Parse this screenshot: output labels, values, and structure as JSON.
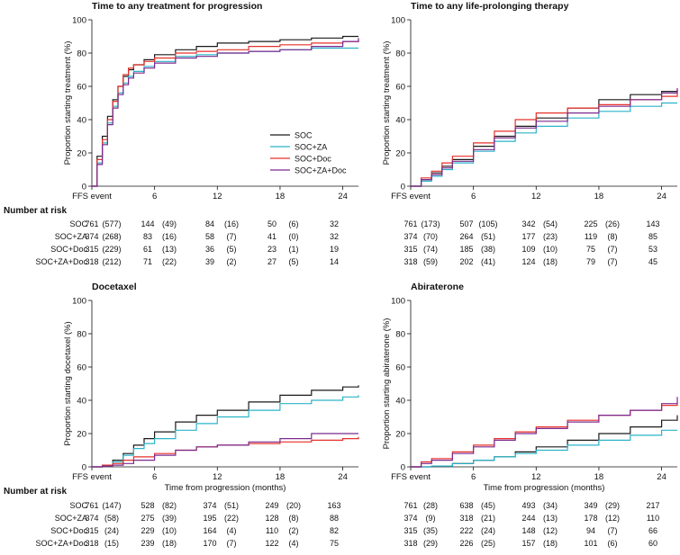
{
  "series_colors": {
    "SOC": "#1a1a1a",
    "SOC+ZA": "#2bb3c8",
    "SOC+Doc": "#e5312b",
    "SOC+ZA+Doc": "#7b2a8e"
  },
  "risk_header": "Number at risk",
  "risk_groups": [
    "SOC",
    "SOC+ZA",
    "SOC+Doc",
    "SOC+ZA+Doc"
  ],
  "chart_data": [
    {
      "type": "line",
      "title": "Time to any treatment for progression",
      "ylabel": "Proportion starting treatment (%)",
      "xlabel": "",
      "xlim": [
        0,
        25.5
      ],
      "ylim": [
        0,
        100
      ],
      "xticks": [
        "FFS event",
        "6",
        "12",
        "18",
        "24"
      ],
      "xtick_values": [
        0,
        6,
        12,
        18,
        24
      ],
      "yticks": [
        "0",
        "20",
        "40",
        "60",
        "80",
        "100"
      ],
      "legend": [
        "SOC",
        "SOC+ZA",
        "SOC+Doc",
        "SOC+ZA+Doc"
      ],
      "legend_position": "bottom-right",
      "series": [
        {
          "name": "SOC",
          "x": [
            0,
            0.5,
            1,
            1.5,
            2,
            2.5,
            3,
            3.5,
            4,
            5,
            6,
            8,
            10,
            12,
            15,
            18,
            21,
            24,
            25.5
          ],
          "y": [
            0,
            18,
            30,
            42,
            52,
            60,
            66,
            70,
            73,
            76,
            79,
            82,
            84,
            86,
            87,
            88,
            89,
            90,
            90
          ]
        },
        {
          "name": "SOC+ZA",
          "x": [
            0,
            0.5,
            1,
            1.5,
            2,
            2.5,
            3,
            3.5,
            4,
            5,
            6,
            8,
            10,
            12,
            15,
            18,
            21,
            24,
            25.5
          ],
          "y": [
            0,
            14,
            26,
            38,
            48,
            56,
            62,
            66,
            69,
            72,
            75,
            78,
            79,
            80,
            81,
            82,
            83,
            83,
            83
          ]
        },
        {
          "name": "SOC+Doc",
          "x": [
            0,
            0.5,
            1,
            1.5,
            2,
            2.5,
            3,
            3.5,
            4,
            5,
            6,
            8,
            10,
            12,
            15,
            18,
            21,
            24,
            25.5
          ],
          "y": [
            0,
            16,
            28,
            40,
            51,
            60,
            67,
            71,
            73,
            75,
            77,
            80,
            81,
            82,
            84,
            85,
            86,
            87,
            88
          ]
        },
        {
          "name": "SOC+ZA+Doc",
          "x": [
            0,
            0.5,
            1,
            1.5,
            2,
            2.5,
            3,
            3.5,
            4,
            5,
            6,
            8,
            10,
            12,
            15,
            18,
            21,
            24,
            25.5
          ],
          "y": [
            0,
            13,
            25,
            37,
            47,
            55,
            61,
            65,
            68,
            71,
            74,
            77,
            78,
            80,
            81,
            82,
            84,
            87,
            89
          ]
        }
      ],
      "at_risk": [
        [
          "761",
          "(577)",
          "144",
          "(49)",
          "84",
          "(16)",
          "50",
          "(6)",
          "32"
        ],
        [
          "374",
          "(268)",
          "83",
          "(16)",
          "58",
          "(7)",
          "41",
          "(0)",
          "32"
        ],
        [
          "315",
          "(229)",
          "61",
          "(13)",
          "36",
          "(5)",
          "23",
          "(1)",
          "19"
        ],
        [
          "318",
          "(212)",
          "71",
          "(22)",
          "39",
          "(2)",
          "27",
          "(5)",
          "14"
        ]
      ]
    },
    {
      "type": "line",
      "title": "Time to any life-prolonging therapy",
      "ylabel": "Proportion starting treatment (%)",
      "xlabel": "",
      "xlim": [
        0,
        25.5
      ],
      "ylim": [
        0,
        100
      ],
      "xticks": [
        "FFS event",
        "6",
        "12",
        "18",
        "24"
      ],
      "xtick_values": [
        0,
        6,
        12,
        18,
        24
      ],
      "yticks": [
        "0",
        "20",
        "40",
        "60",
        "80",
        "100"
      ],
      "series": [
        {
          "name": "SOC",
          "x": [
            0,
            1,
            2,
            3,
            4,
            6,
            8,
            10,
            12,
            15,
            18,
            21,
            24,
            25.5
          ],
          "y": [
            0,
            4,
            8,
            12,
            16,
            24,
            30,
            36,
            41,
            47,
            52,
            55,
            57,
            58
          ]
        },
        {
          "name": "SOC+ZA",
          "x": [
            0,
            1,
            2,
            3,
            4,
            6,
            8,
            10,
            12,
            15,
            18,
            21,
            24,
            25.5
          ],
          "y": [
            0,
            3,
            6,
            10,
            14,
            21,
            27,
            32,
            36,
            41,
            45,
            48,
            50,
            50
          ]
        },
        {
          "name": "SOC+Doc",
          "x": [
            0,
            1,
            2,
            3,
            4,
            6,
            8,
            10,
            12,
            15,
            18,
            21,
            24,
            25.5
          ],
          "y": [
            0,
            5,
            9,
            14,
            18,
            26,
            33,
            40,
            44,
            47,
            49,
            52,
            54,
            58
          ]
        },
        {
          "name": "SOC+ZA+Doc",
          "x": [
            0,
            1,
            2,
            3,
            4,
            6,
            8,
            10,
            12,
            15,
            18,
            21,
            24,
            25.5
          ],
          "y": [
            0,
            4,
            7,
            11,
            15,
            22,
            29,
            35,
            39,
            44,
            48,
            52,
            56,
            59
          ]
        }
      ],
      "at_risk": [
        [
          "761",
          "(173)",
          "507",
          "(105)",
          "342",
          "(54)",
          "225",
          "(26)",
          "143"
        ],
        [
          "374",
          "(70)",
          "264",
          "(51)",
          "177",
          "(23)",
          "119",
          "(8)",
          "85"
        ],
        [
          "315",
          "(74)",
          "185",
          "(38)",
          "109",
          "(10)",
          "75",
          "(7)",
          "53"
        ],
        [
          "318",
          "(59)",
          "202",
          "(41)",
          "124",
          "(18)",
          "79",
          "(7)",
          "45"
        ]
      ]
    },
    {
      "type": "line",
      "title": "Docetaxel",
      "ylabel": "Proportion starting docetaxel (%)",
      "xlabel": "Time from progression (months)",
      "xlim": [
        0,
        25.5
      ],
      "ylim": [
        0,
        100
      ],
      "xticks": [
        "FFS event",
        "6",
        "12",
        "18",
        "24"
      ],
      "xtick_values": [
        0,
        6,
        12,
        18,
        24
      ],
      "yticks": [
        "0",
        "20",
        "40",
        "60",
        "80",
        "100"
      ],
      "series": [
        {
          "name": "SOC",
          "x": [
            0,
            1,
            2,
            3,
            4,
            5,
            6,
            8,
            10,
            12,
            15,
            18,
            21,
            24,
            25.5
          ],
          "y": [
            0,
            1,
            4,
            8,
            13,
            17,
            21,
            27,
            31,
            34,
            39,
            43,
            46,
            48,
            49
          ]
        },
        {
          "name": "SOC+ZA",
          "x": [
            0,
            1,
            2,
            3,
            4,
            5,
            6,
            8,
            10,
            12,
            15,
            18,
            21,
            24,
            25.5
          ],
          "y": [
            0,
            1,
            3,
            7,
            11,
            14,
            17,
            22,
            26,
            30,
            34,
            38,
            40,
            42,
            43
          ]
        },
        {
          "name": "SOC+Doc",
          "x": [
            0,
            1,
            2,
            3,
            4,
            6,
            8,
            10,
            12,
            15,
            18,
            21,
            24,
            25.5
          ],
          "y": [
            0,
            1,
            2,
            4,
            6,
            8,
            10,
            12,
            13,
            14,
            15,
            16,
            17,
            18
          ]
        },
        {
          "name": "SOC+ZA+Doc",
          "x": [
            0,
            1,
            2,
            3,
            4,
            6,
            8,
            10,
            12,
            15,
            18,
            21,
            24,
            25.5
          ],
          "y": [
            0,
            0.5,
            1,
            2,
            4,
            7,
            10,
            12,
            13,
            15,
            17,
            20,
            20,
            20
          ]
        }
      ],
      "at_risk": [
        [
          "761",
          "(147)",
          "528",
          "(82)",
          "374",
          "(51)",
          "249",
          "(20)",
          "163"
        ],
        [
          "374",
          "(58)",
          "275",
          "(39)",
          "195",
          "(22)",
          "128",
          "(8)",
          "88"
        ],
        [
          "315",
          "(24)",
          "229",
          "(10)",
          "164",
          "(4)",
          "110",
          "(2)",
          "82"
        ],
        [
          "318",
          "(15)",
          "239",
          "(18)",
          "170",
          "(7)",
          "122",
          "(4)",
          "75"
        ]
      ]
    },
    {
      "type": "line",
      "title": "Abiraterone",
      "ylabel": "Proportion starting abiraterone (%)",
      "xlabel": "Time from progression (months)",
      "xlim": [
        0,
        25.5
      ],
      "ylim": [
        0,
        100
      ],
      "xticks": [
        "FFS event",
        "6",
        "12",
        "18",
        "24"
      ],
      "xtick_values": [
        0,
        6,
        12,
        18,
        24
      ],
      "yticks": [
        "0",
        "20",
        "40",
        "60",
        "80",
        "100"
      ],
      "series": [
        {
          "name": "SOC",
          "x": [
            0,
            2,
            4,
            6,
            8,
            10,
            12,
            15,
            18,
            21,
            24,
            25.5
          ],
          "y": [
            0,
            0.5,
            2,
            4,
            6,
            9,
            12,
            16,
            20,
            24,
            28,
            31
          ]
        },
        {
          "name": "SOC+ZA",
          "x": [
            0,
            2,
            4,
            6,
            8,
            10,
            12,
            15,
            18,
            21,
            24,
            25.5
          ],
          "y": [
            0,
            0.5,
            2,
            4,
            6,
            8,
            10,
            13,
            16,
            19,
            22,
            22
          ]
        },
        {
          "name": "SOC+Doc",
          "x": [
            0,
            1,
            2,
            4,
            6,
            8,
            10,
            12,
            15,
            18,
            21,
            24,
            25.5
          ],
          "y": [
            0,
            3,
            5,
            9,
            13,
            17,
            21,
            24,
            28,
            31,
            34,
            37,
            39
          ]
        },
        {
          "name": "SOC+ZA+Doc",
          "x": [
            0,
            1,
            2,
            4,
            6,
            8,
            10,
            12,
            15,
            18,
            21,
            24,
            25.5
          ],
          "y": [
            0,
            2,
            4,
            8,
            12,
            16,
            20,
            23,
            27,
            31,
            34,
            38,
            42
          ]
        }
      ],
      "at_risk": [
        [
          "761",
          "(28)",
          "638",
          "(45)",
          "493",
          "(34)",
          "349",
          "(29)",
          "217"
        ],
        [
          "374",
          "(9)",
          "318",
          "(21)",
          "244",
          "(13)",
          "178",
          "(12)",
          "110"
        ],
        [
          "315",
          "(35)",
          "222",
          "(24)",
          "148",
          "(12)",
          "94",
          "(7)",
          "66"
        ],
        [
          "318",
          "(29)",
          "226",
          "(25)",
          "157",
          "(18)",
          "101",
          "(6)",
          "60"
        ]
      ]
    }
  ]
}
